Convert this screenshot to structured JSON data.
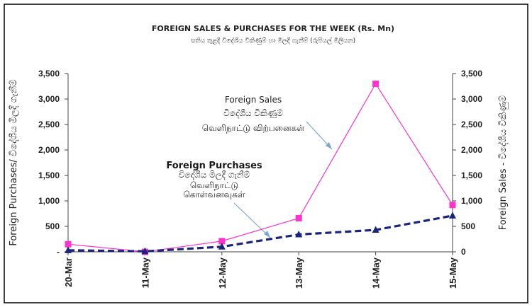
{
  "chart_data": {
    "type": "line",
    "title": "FOREIGN SALES & PURCHASES FOR THE WEEK (Rs. Mn)",
    "subtitle": "සතිය තුළදී විදේශීය විකිණුම් හා මිලදී ගැනීම් (රුපියල් මිලියන)",
    "categories": [
      "20-Mar",
      "11-May",
      "12-May",
      "13-May",
      "14-May",
      "15-May"
    ],
    "y_left": {
      "label": "Foreign Purchases/ විදේශීය මිලදී ගැනීම්",
      "range": [
        0,
        3500
      ],
      "ticks": [
        "3,500",
        "3,000",
        "2,500",
        "2,000",
        "1,500",
        "1,000",
        "500",
        "-"
      ]
    },
    "y_right": {
      "label": "Foreign Sales - විදේශීය විකිණුම්",
      "range": [
        0,
        3500
      ],
      "ticks": [
        "3,500",
        "3,000",
        "2,500",
        "2,000",
        "1,500",
        "1,000",
        "500",
        "0"
      ]
    },
    "series": [
      {
        "name": "Foreign Sales",
        "axis": "right",
        "color": "#ff33cc",
        "marker": "square",
        "line": "solid",
        "values": [
          150,
          0,
          210,
          660,
          3300,
          920
        ]
      },
      {
        "name": "Foreign Purchases",
        "axis": "left",
        "color": "#1a237e",
        "marker": "triangle",
        "line": "dashed",
        "values": [
          30,
          10,
          100,
          340,
          430,
          710
        ]
      }
    ],
    "annotations": {
      "sales": [
        "Foreign Sales",
        "විදේශීය විකිණුම්",
        "வெளிநாட்டு விற்பனைகள்"
      ],
      "purchases": [
        "Foreign Purchases",
        "විදේශීය මිලදී ගැනීම්",
        "வெளிநாட்டு",
        "கொள்வனவுகள்"
      ]
    },
    "grid": false,
    "legend": "none"
  }
}
